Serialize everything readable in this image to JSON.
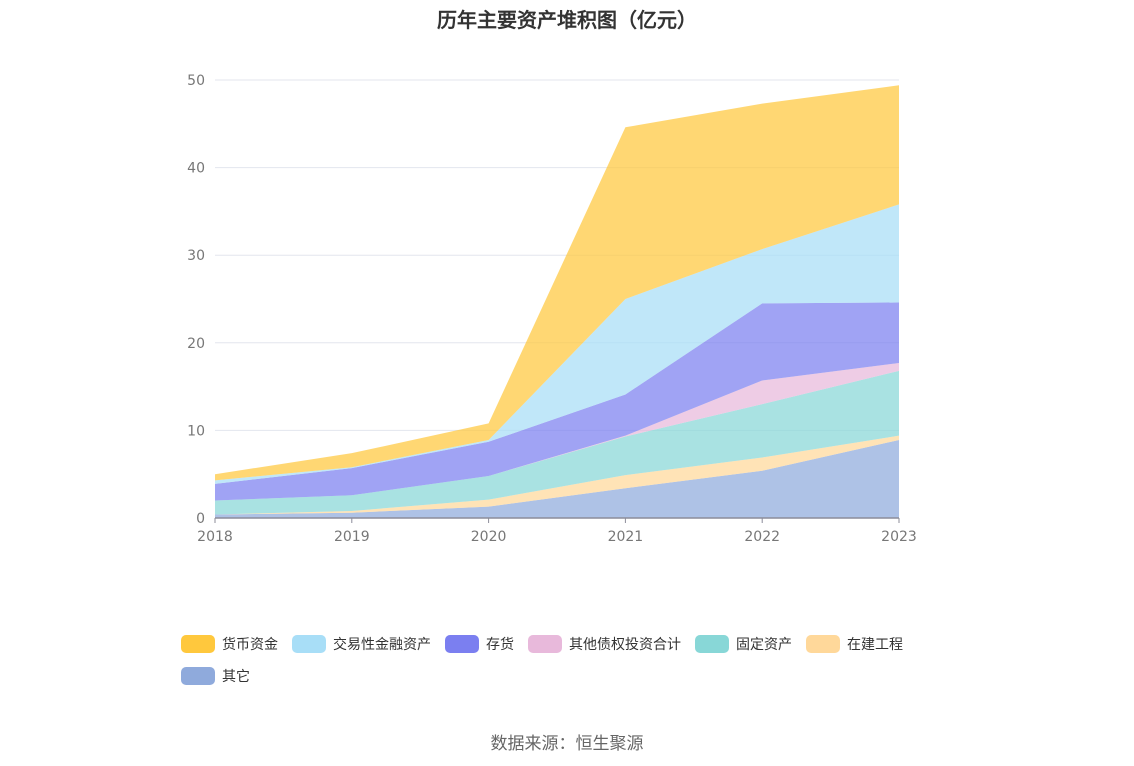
{
  "chart_data": {
    "type": "area",
    "stacked": true,
    "title": "历年主要资产堆积图（亿元）",
    "source": "数据来源：恒生聚源",
    "x": [
      "2018",
      "2019",
      "2020",
      "2021",
      "2022",
      "2023"
    ],
    "ylim": [
      0,
      50
    ],
    "yticks": [
      "0",
      "10",
      "20",
      "30",
      "40",
      "50"
    ],
    "grid": true,
    "legend_position": "bottom",
    "series": [
      {
        "name": "其它",
        "color": "#8FAADC",
        "values": [
          0.4,
          0.6,
          1.3,
          3.4,
          5.4,
          8.9
        ]
      },
      {
        "name": "在建工程",
        "color": "#FFD89A",
        "values": [
          0.0,
          0.2,
          0.8,
          1.5,
          1.5,
          0.5
        ]
      },
      {
        "name": "固定资产",
        "color": "#88D7D7",
        "values": [
          1.6,
          1.8,
          2.7,
          4.4,
          6.1,
          7.4
        ]
      },
      {
        "name": "其他债权投资合计",
        "color": "#E8B9DB",
        "values": [
          0.0,
          0.0,
          0.0,
          0.1,
          2.7,
          0.9
        ]
      },
      {
        "name": "存货",
        "color": "#7B7FF0",
        "values": [
          1.9,
          3.1,
          3.9,
          4.7,
          8.8,
          6.9
        ]
      },
      {
        "name": "交易性金融资产",
        "color": "#A8DEF7",
        "values": [
          0.4,
          0.1,
          0.2,
          10.9,
          6.2,
          11.2
        ]
      },
      {
        "name": "货币资金",
        "color": "#FFC83D",
        "values": [
          0.7,
          1.6,
          1.9,
          19.6,
          16.6,
          13.6
        ]
      }
    ],
    "legend_order": [
      "货币资金",
      "交易性金融资产",
      "存货",
      "其他债权投资合计",
      "固定资产",
      "在建工程",
      "其它"
    ]
  }
}
